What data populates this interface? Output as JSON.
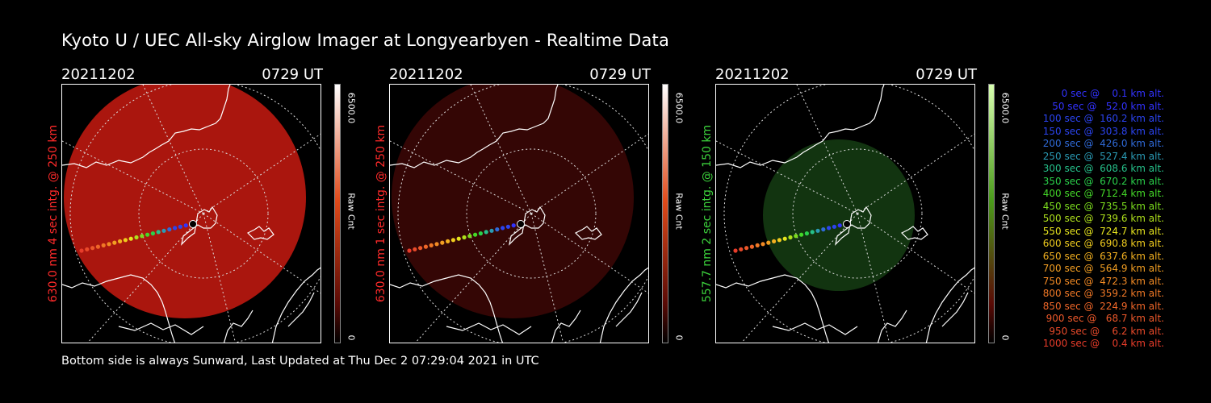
{
  "title": "Kyoto U / UEC All-sky Airglow Imager at Longyearbyen - Realtime Data",
  "footer": "Bottom side is always Sunward, Last Updated at Thu Dec  2 07:29:04 2021 in UTC",
  "panels": [
    {
      "date": "20211202",
      "time": "0729 UT",
      "label": "630.0 nm 4 sec intg. @ 250 km",
      "label_color": "#ff2a2a",
      "cb_max": "6500.0",
      "cb_unit": "Raw Cnt",
      "cb_min": "0",
      "disk_color": "#c81a10",
      "disk_opacity": 0.85,
      "bar_color": "#ff3300"
    },
    {
      "date": "20211202",
      "time": "0729 UT",
      "label": "630.0 nm 1 sec intg. @ 250 km",
      "label_color": "#ff2a2a",
      "cb_max": "6500.0",
      "cb_unit": "Raw Cnt",
      "cb_min": "0",
      "disk_color": "#3a0705",
      "disk_opacity": 0.9,
      "bar_color": "#ff3300"
    },
    {
      "date": "20211202",
      "time": "0729 UT",
      "label": "557.7 nm 2 sec intg. @ 150 km",
      "label_color": "#3cd23c",
      "cb_max": "6500.0",
      "cb_unit": "Raw Cnt",
      "cb_min": "0",
      "disk_color": "#143a12",
      "disk_opacity": 0.9,
      "bar_color": "#33cc00"
    }
  ],
  "legend": [
    {
      "text": "   0 sec @    0.1 km alt.",
      "color": "#3232ff"
    },
    {
      "text": "  50 sec @   52.0 km alt.",
      "color": "#3232ff"
    },
    {
      "text": " 100 sec @  160.2 km alt.",
      "color": "#2b44f0"
    },
    {
      "text": " 150 sec @  303.8 km alt.",
      "color": "#2b44f0"
    },
    {
      "text": " 200 sec @  426.0 km alt.",
      "color": "#2f6ad8"
    },
    {
      "text": " 250 sec @  527.4 km alt.",
      "color": "#2a9ab4"
    },
    {
      "text": " 300 sec @  608.6 km alt.",
      "color": "#26c08a"
    },
    {
      "text": " 350 sec @  670.2 km alt.",
      "color": "#2ad04a"
    },
    {
      "text": " 400 sec @  712.4 km alt.",
      "color": "#44d828"
    },
    {
      "text": " 450 sec @  735.5 km alt.",
      "color": "#7cdc1e"
    },
    {
      "text": " 500 sec @  739.6 km alt.",
      "color": "#aee01c"
    },
    {
      "text": " 550 sec @  724.7 km alt.",
      "color": "#e6e41e"
    },
    {
      "text": " 600 sec @  690.8 km alt.",
      "color": "#f0cc1e"
    },
    {
      "text": " 650 sec @  637.6 km alt.",
      "color": "#f2b020"
    },
    {
      "text": " 700 sec @  564.9 km alt.",
      "color": "#f29e22"
    },
    {
      "text": " 750 sec @  472.3 km alt.",
      "color": "#f28a24"
    },
    {
      "text": " 800 sec @  359.2 km alt.",
      "color": "#f07826"
    },
    {
      "text": " 850 sec @  224.9 km alt.",
      "color": "#ee6628"
    },
    {
      "text": " 900 sec @   68.7 km alt.",
      "color": "#ec582a"
    },
    {
      "text": " 950 sec @    6.2 km alt.",
      "color": "#ea4a2a"
    },
    {
      "text": "1000 sec @    0.4 km alt.",
      "color": "#e83c2a"
    }
  ]
}
